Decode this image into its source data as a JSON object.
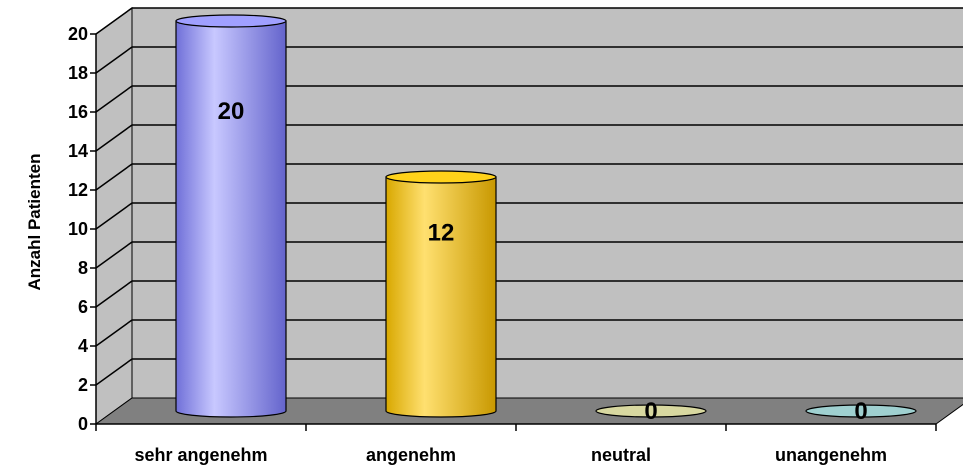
{
  "chart_data": {
    "type": "bar",
    "style": "3d-cylinder",
    "categories": [
      "sehr angenehm",
      "angenehm",
      "neutral",
      "unangenehm"
    ],
    "values": [
      20,
      12,
      0,
      0
    ],
    "data_labels": [
      "20",
      "12",
      "0",
      "0"
    ],
    "ylabel": "Anzahl Patienten",
    "xlabel": "",
    "ylim": [
      0,
      20
    ],
    "yticks": [
      "0",
      "2",
      "4",
      "6",
      "8",
      "10",
      "12",
      "14",
      "16",
      "18",
      "20"
    ],
    "grid": true,
    "legend": "none",
    "colors": {
      "bars": [
        "#8c8cf2",
        "#f2c200",
        "#d8d8a0",
        "#9fd0d0"
      ],
      "wall": "#c0c0c0",
      "floor": "#808080"
    }
  }
}
